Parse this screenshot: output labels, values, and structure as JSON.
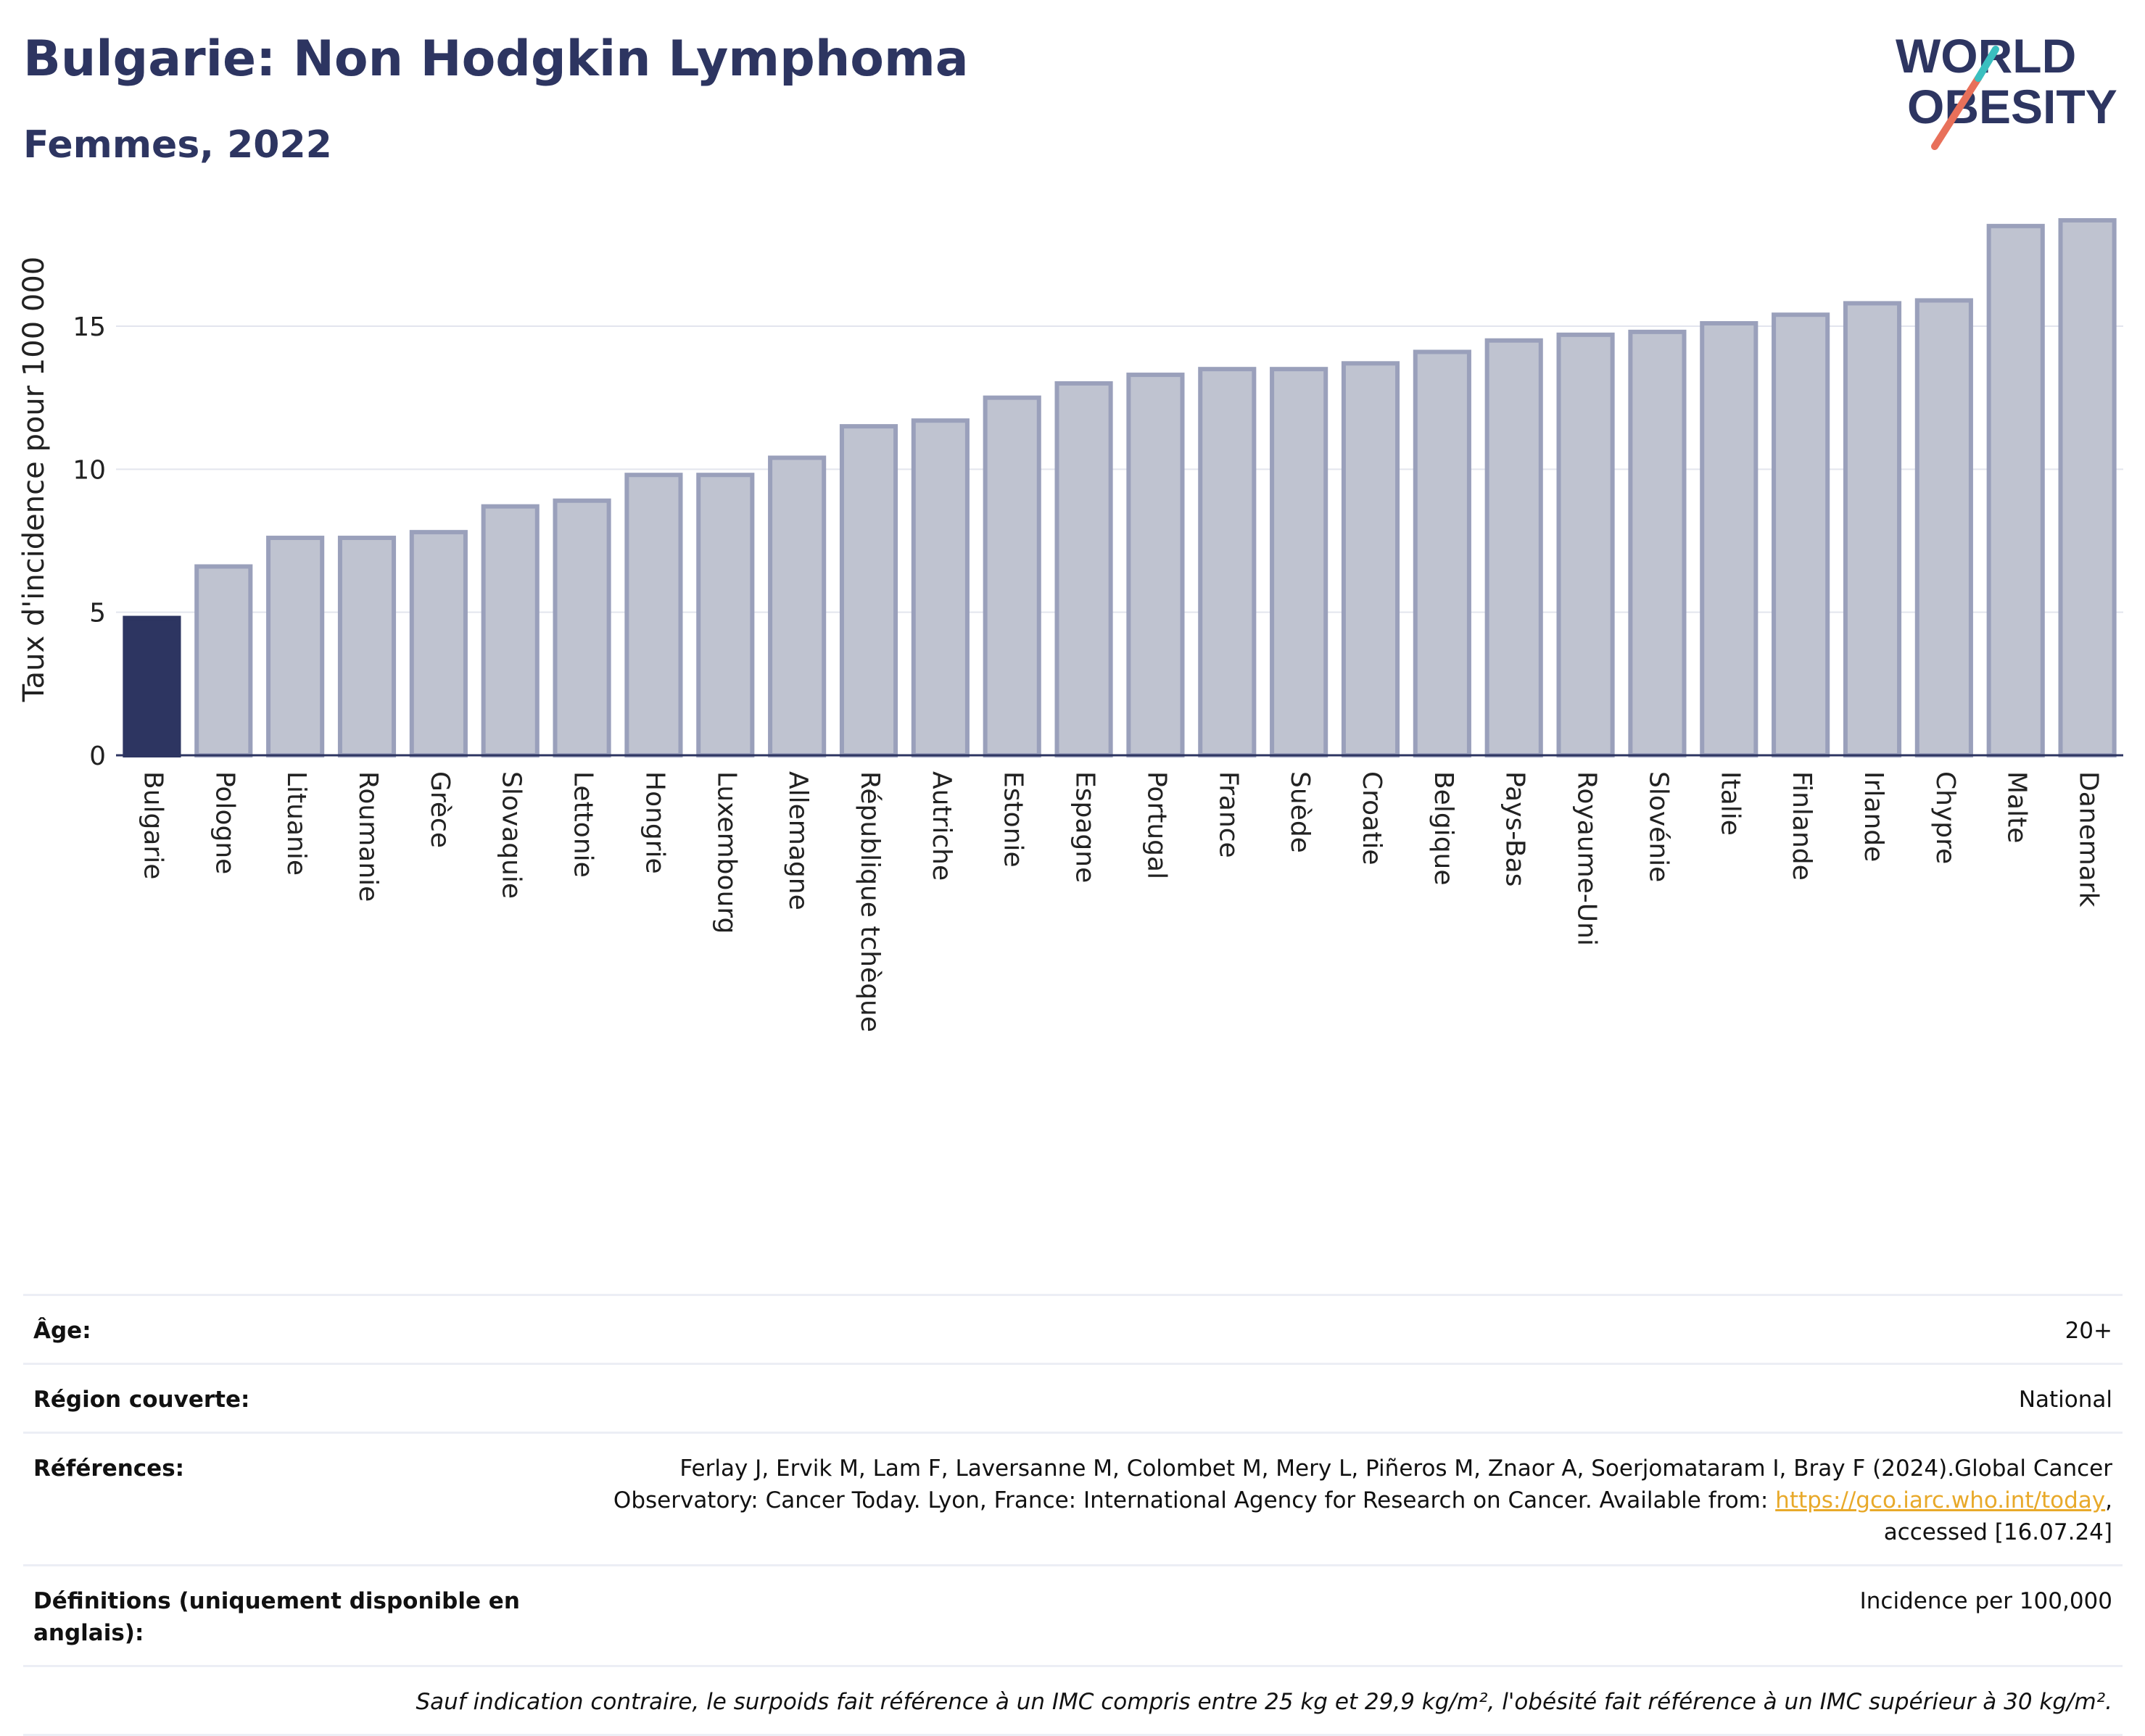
{
  "header": {
    "title": "Bulgarie: Non Hodgkin Lymphoma",
    "subtitle": "Femmes, 2022"
  },
  "logo": {
    "line1": "WORLD",
    "line2": "OBESITY"
  },
  "colors": {
    "highlight": "#2d3561",
    "bar": "#bfc3d0",
    "bar_border": "#9aa0bb",
    "accent_red": "#e8705a",
    "accent_teal": "#3bbfbf",
    "link": "#e8a92a"
  },
  "chart_data": {
    "type": "bar",
    "title": "Bulgarie: Non Hodgkin Lymphoma",
    "subtitle": "Femmes, 2022",
    "ylabel": "Taux d'incidence pour 100 000",
    "xlabel": "",
    "ylim": [
      0,
      18.8
    ],
    "yticks": [
      0,
      5,
      10,
      15
    ],
    "grid": true,
    "highlight": "Bulgarie",
    "categories": [
      "Bulgarie",
      "Pologne",
      "Lituanie",
      "Roumanie",
      "Grèce",
      "Slovaquie",
      "Lettonie",
      "Hongrie",
      "Luxembourg",
      "Allemagne",
      "République tchèque",
      "Autriche",
      "Estonie",
      "Espagne",
      "Portugal",
      "France",
      "Suède",
      "Croatie",
      "Belgique",
      "Pays-Bas",
      "Royaume-Uni",
      "Slovénie",
      "Italie",
      "Finlande",
      "Irlande",
      "Chypre",
      "Malte",
      "Danemark"
    ],
    "values": [
      4.8,
      6.6,
      7.6,
      7.6,
      7.8,
      8.7,
      8.9,
      9.8,
      9.8,
      10.4,
      11.5,
      11.7,
      12.5,
      13.0,
      13.3,
      13.5,
      13.5,
      13.7,
      14.1,
      14.5,
      14.7,
      14.8,
      15.1,
      15.4,
      15.8,
      15.9,
      18.5,
      18.7
    ]
  },
  "meta": {
    "age_label": "Âge:",
    "age_value": "20+",
    "region_label": "Région couverte:",
    "region_value": "National",
    "refs_label": "Références:",
    "refs_text_1": "Ferlay J, Ervik M, Lam F, Laversanne M, Colombet M, Mery L, Piñeros M, Znaor A, Soerjomataram I, Bray F (2024).Global Cancer Observatory: Cancer Today. Lyon, France: International Agency for Research on Cancer. Available from: ",
    "refs_link": "https://gco.iarc.who.int/today",
    "refs_text_2": ", accessed [16.07.24]",
    "def_label": "Définitions (uniquement disponible en anglais):",
    "def_value": "Incidence per 100,000",
    "note": "Sauf indication contraire, le surpoids fait référence à un IMC compris entre 25 kg et 29,9 kg/m², l'obésité fait référence à un IMC supérieur à 30 kg/m²."
  }
}
